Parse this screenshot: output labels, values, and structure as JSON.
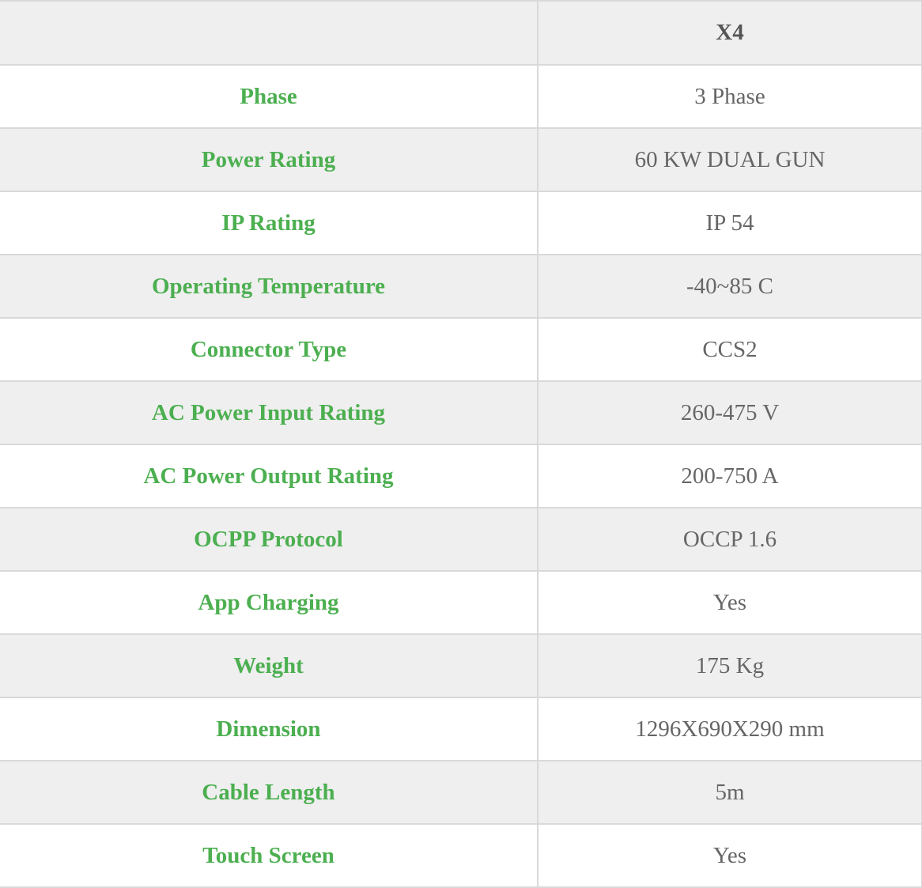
{
  "table": {
    "header": {
      "label": "",
      "model": "X4"
    },
    "rows": [
      {
        "label": "Phase",
        "value": "3 Phase"
      },
      {
        "label": "Power Rating",
        "value": "60 KW DUAL GUN"
      },
      {
        "label": "IP Rating",
        "value": "IP 54"
      },
      {
        "label": "Operating Temperature",
        "value": "-40~85 C"
      },
      {
        "label": "Connector Type",
        "value": "CCS2"
      },
      {
        "label": "AC Power Input Rating",
        "value": "260-475 V"
      },
      {
        "label": "AC Power Output Rating",
        "value": "200-750 A"
      },
      {
        "label": "OCPP Protocol",
        "value": "OCCP 1.6"
      },
      {
        "label": "App Charging",
        "value": "Yes"
      },
      {
        "label": "Weight",
        "value": "175 Kg"
      },
      {
        "label": "Dimension",
        "value": "1296X690X290 mm"
      },
      {
        "label": "Cable Length",
        "value": "5m"
      },
      {
        "label": "Touch Screen",
        "value": "Yes"
      }
    ]
  },
  "colors": {
    "label_green": "#4caf50",
    "value_gray": "#666666",
    "header_text": "#555555",
    "stripe_bg": "#efefef",
    "border": "#d9d9d9"
  }
}
